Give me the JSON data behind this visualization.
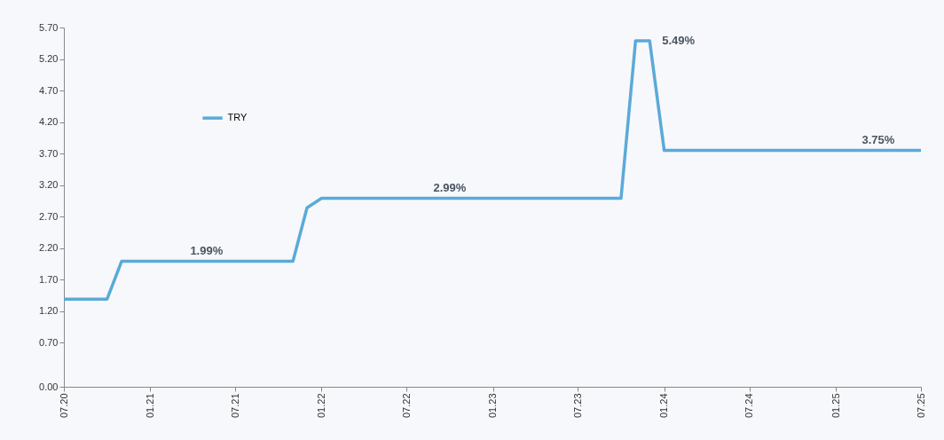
{
  "chart_data": {
    "type": "line",
    "x": [
      "2020-07",
      "2020-10",
      "2020-11",
      "2021-05",
      "2021-11",
      "2021-12",
      "2022-01",
      "2022-10",
      "2023-10",
      "2023-11",
      "2023-12",
      "2024-01",
      "2025-04",
      "2025-07"
    ],
    "series": [
      {
        "name": "TRY",
        "color": "#5aaad8",
        "values": [
          1.39,
          1.39,
          1.99,
          1.99,
          1.99,
          2.84,
          2.99,
          2.99,
          2.99,
          5.49,
          5.49,
          3.75,
          3.75,
          3.75
        ],
        "value_labels": [
          null,
          null,
          null,
          "1.99%",
          null,
          null,
          null,
          "2.99%",
          null,
          null,
          "5.49%",
          null,
          "3.75%",
          null
        ]
      }
    ],
    "xlim": [
      "2020-07",
      "2025-07"
    ],
    "xticks": [
      {
        "value": "2020-07",
        "label": "07.20"
      },
      {
        "value": "2021-01",
        "label": "01.21"
      },
      {
        "value": "2021-07",
        "label": "07.21"
      },
      {
        "value": "2022-01",
        "label": "01.22"
      },
      {
        "value": "2022-07",
        "label": "07.22"
      },
      {
        "value": "2023-01",
        "label": "01.23"
      },
      {
        "value": "2023-07",
        "label": "07.23"
      },
      {
        "value": "2024-01",
        "label": "01.24"
      },
      {
        "value": "2024-07",
        "label": "07.24"
      },
      {
        "value": "2025-01",
        "label": "01.25"
      },
      {
        "value": "2025-07",
        "label": "07.25"
      }
    ],
    "ylim": [
      0,
      5.7
    ],
    "yticks": [
      {
        "value": 0,
        "label": "0.00"
      },
      {
        "value": 0.7,
        "label": "0.70"
      },
      {
        "value": 1.2,
        "label": "1.20"
      },
      {
        "value": 1.7,
        "label": "1.70"
      },
      {
        "value": 2.2,
        "label": "2.20"
      },
      {
        "value": 2.7,
        "label": "2.70"
      },
      {
        "value": 3.2,
        "label": "3.20"
      },
      {
        "value": 3.7,
        "label": "3.70"
      },
      {
        "value": 4.2,
        "label": "4.20"
      },
      {
        "value": 4.7,
        "label": "4.70"
      },
      {
        "value": 5.2,
        "label": "5.20"
      },
      {
        "value": 5.7,
        "label": "5.70"
      }
    ],
    "legend": "top left",
    "grid": false,
    "line_style": "solid"
  }
}
